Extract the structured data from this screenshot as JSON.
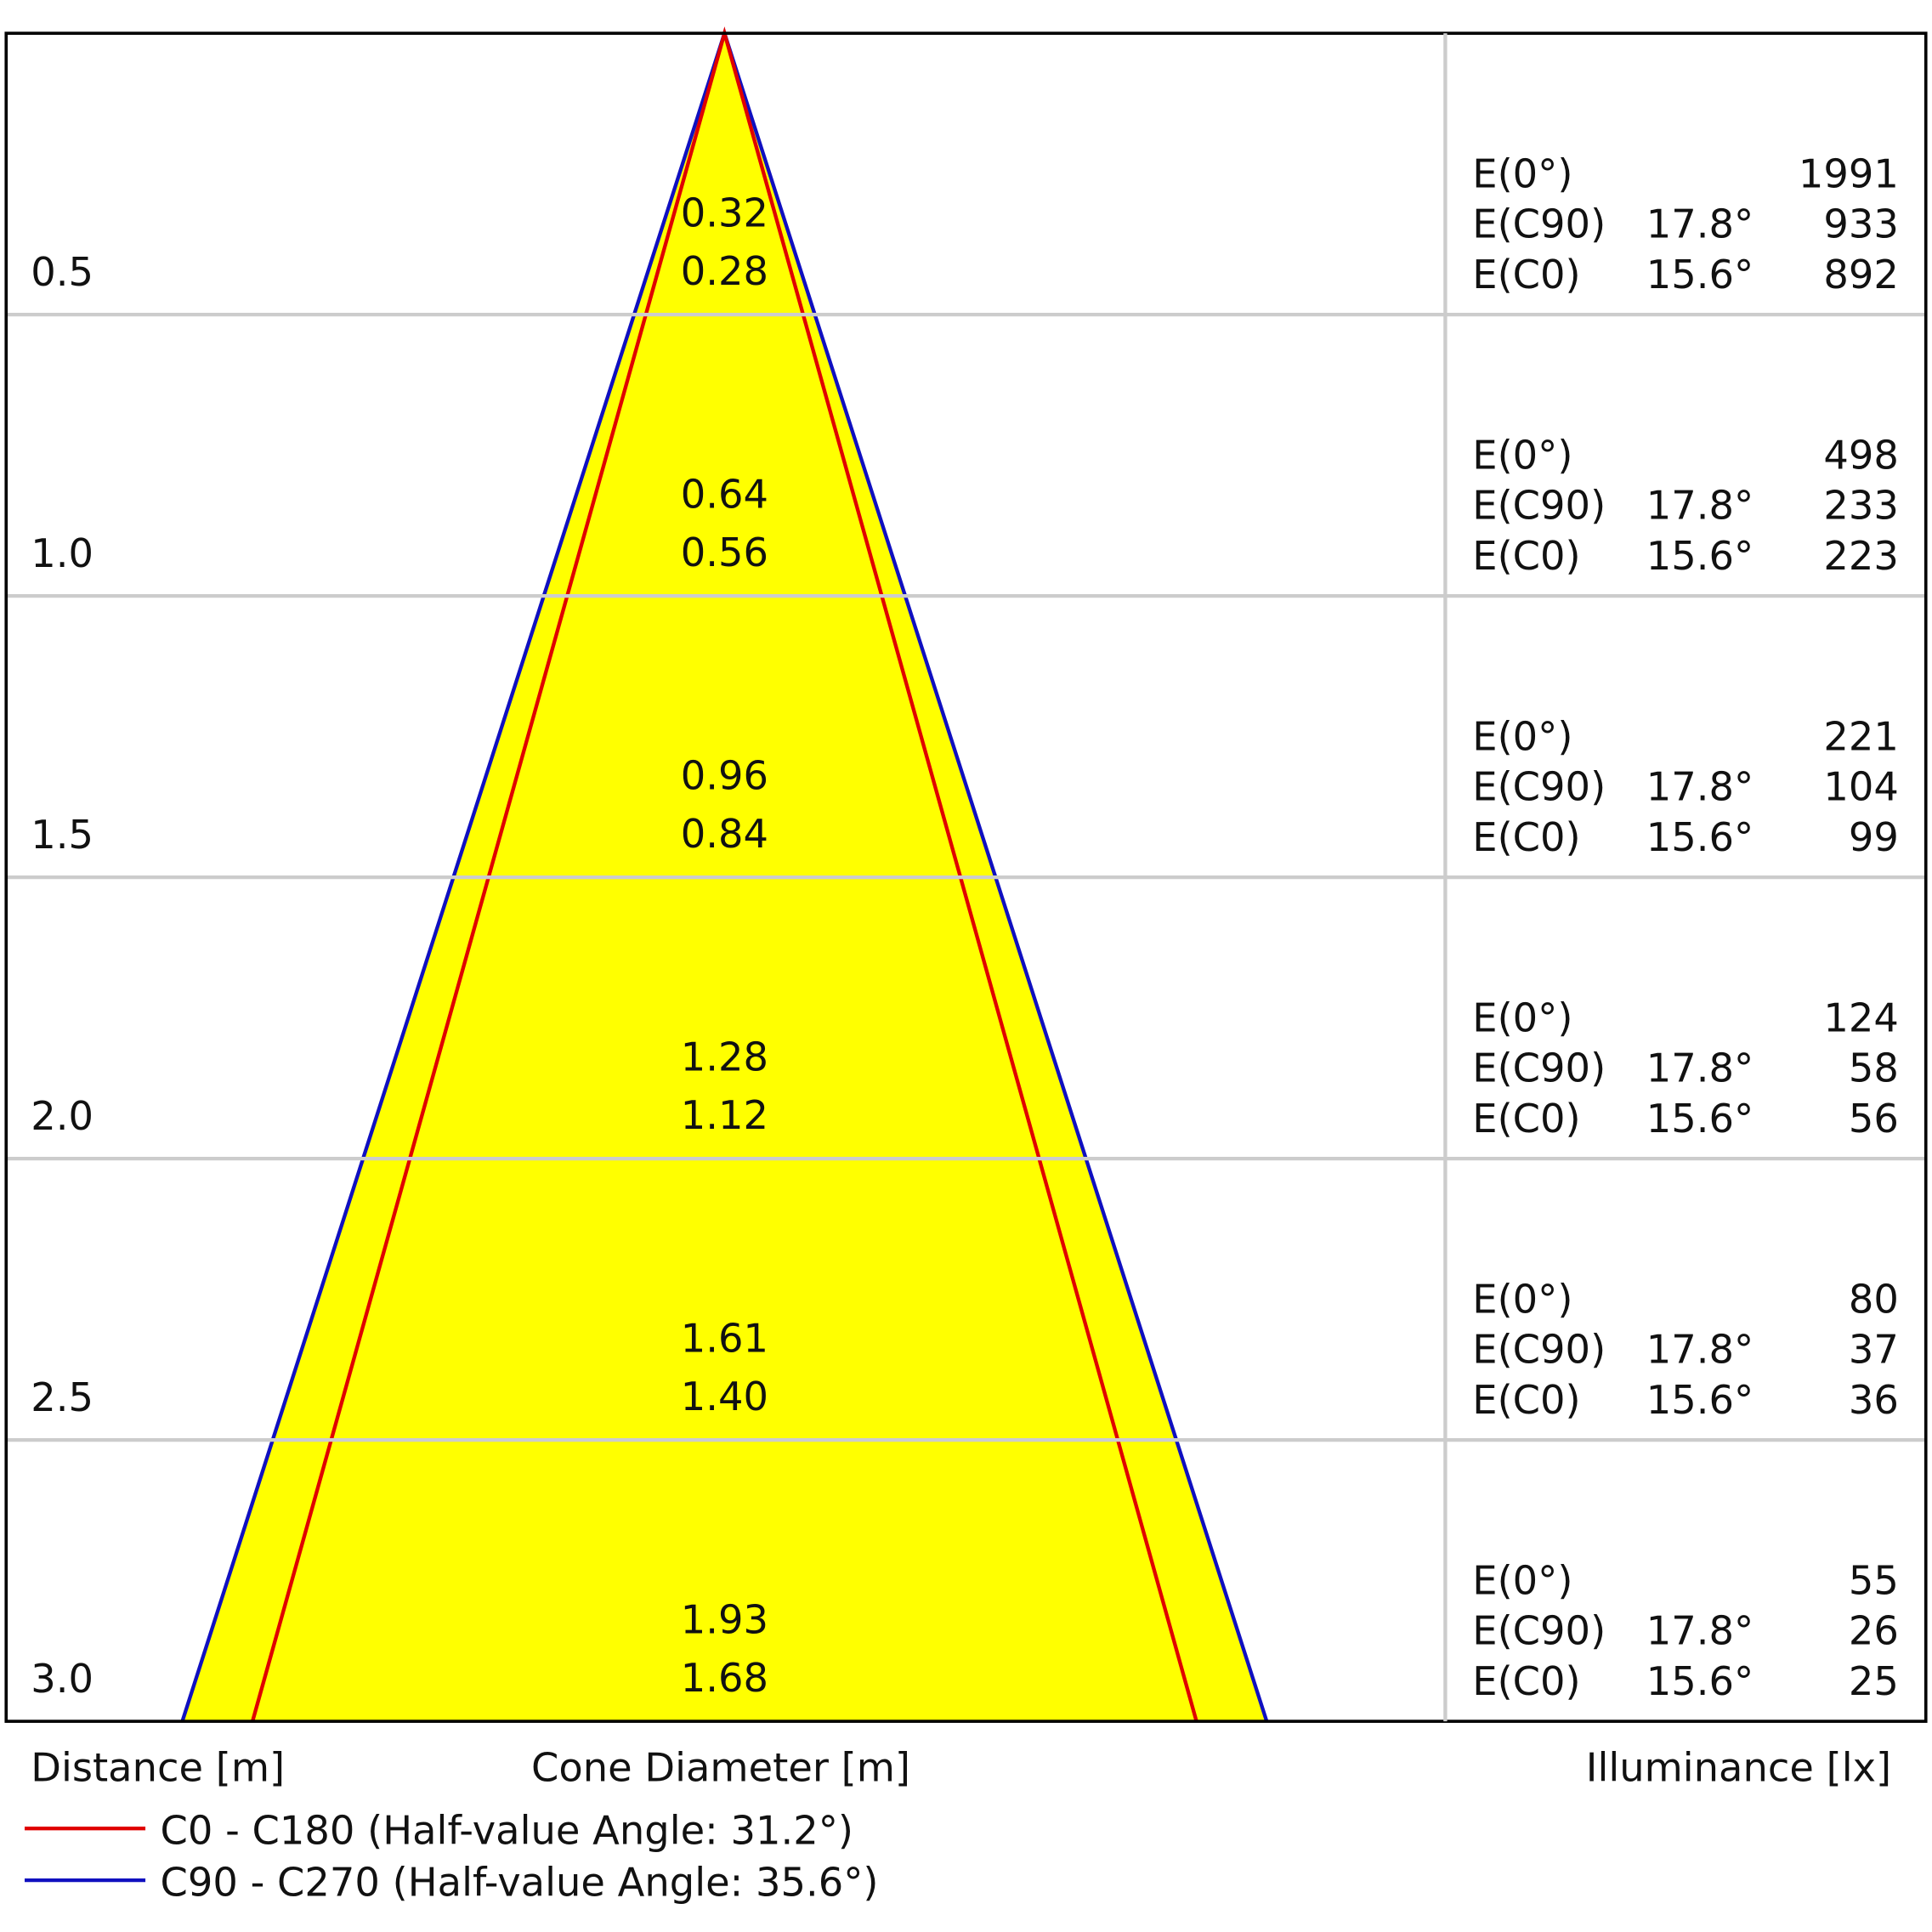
{
  "rows": [
    {
      "distance": "0.5",
      "diameters": [
        "0.32",
        "0.28"
      ],
      "entries": [
        {
          "label": "E(0°)",
          "value": 1991
        },
        {
          "label": "E(C90)",
          "angle": "17.8°",
          "value": 933
        },
        {
          "label": "E(C0)",
          "angle": "15.6°",
          "value": 892
        }
      ]
    },
    {
      "distance": "1.0",
      "diameters": [
        "0.64",
        "0.56"
      ],
      "entries": [
        {
          "label": "E(0°)",
          "value": 498
        },
        {
          "label": "E(C90)",
          "angle": "17.8°",
          "value": 233
        },
        {
          "label": "E(C0)",
          "angle": "15.6°",
          "value": 223
        }
      ]
    },
    {
      "distance": "1.5",
      "diameters": [
        "0.96",
        "0.84"
      ],
      "entries": [
        {
          "label": "E(0°)",
          "value": 221
        },
        {
          "label": "E(C90)",
          "angle": "17.8°",
          "value": 104
        },
        {
          "label": "E(C0)",
          "angle": "15.6°",
          "value": 99
        }
      ]
    },
    {
      "distance": "2.0",
      "diameters": [
        "1.28",
        "1.12"
      ],
      "entries": [
        {
          "label": "E(0°)",
          "value": 124
        },
        {
          "label": "E(C90)",
          "angle": "17.8°",
          "value": 58
        },
        {
          "label": "E(C0)",
          "angle": "15.6°",
          "value": 56
        }
      ]
    },
    {
      "distance": "2.5",
      "diameters": [
        "1.61",
        "1.40"
      ],
      "entries": [
        {
          "label": "E(0°)",
          "value": 80
        },
        {
          "label": "E(C90)",
          "angle": "17.8°",
          "value": 37
        },
        {
          "label": "E(C0)",
          "angle": "15.6°",
          "value": 36
        }
      ]
    },
    {
      "distance": "3.0",
      "diameters": [
        "1.93",
        "1.68"
      ],
      "entries": [
        {
          "label": "E(0°)",
          "value": 55
        },
        {
          "label": "E(C90)",
          "angle": "17.8°",
          "value": 26
        },
        {
          "label": "E(C0)",
          "angle": "15.6°",
          "value": 25
        }
      ]
    }
  ],
  "axis_labels": {
    "distance": "Distance [m]",
    "diameter": "Cone Diameter [m]",
    "illuminance": "Illuminance [lx]"
  },
  "legend": [
    {
      "label": "C0 - C180 (Half-value Angle: 31.2°)",
      "color": "#e00000"
    },
    {
      "label": "C90 - C270 (Half-value Angle: 35.6°)",
      "color": "#1010c0"
    }
  ]
}
